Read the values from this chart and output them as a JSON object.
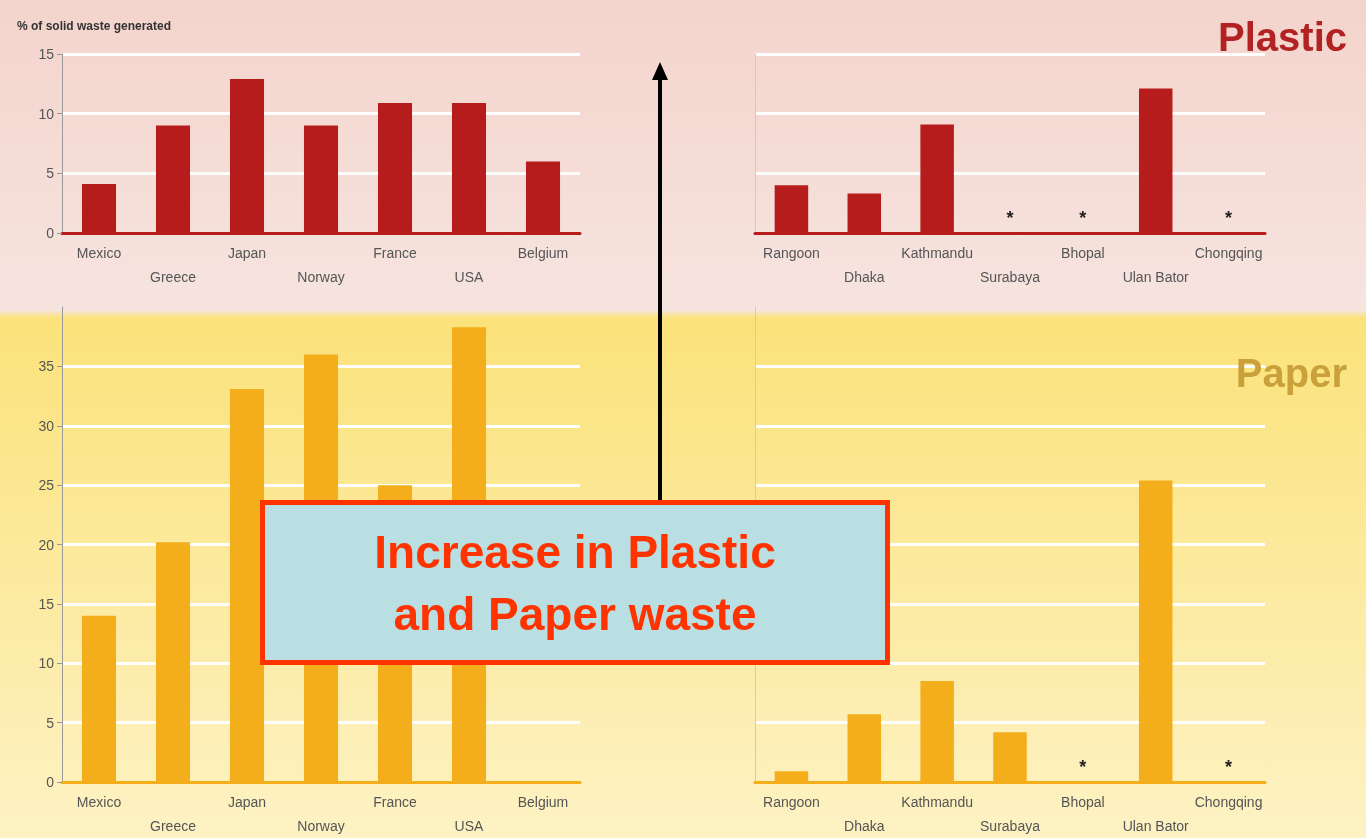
{
  "chart_data": [
    {
      "type": "bar",
      "ylabel": "% of solid waste generated",
      "categories": [
        "Mexico",
        "Greece",
        "Japan",
        "Norway",
        "France",
        "USA",
        "Belgium"
      ],
      "values": [
        4.1,
        9.0,
        12.9,
        9.0,
        10.9,
        10.9,
        6.0
      ],
      "color": "#b71c1c",
      "ylim": [
        0,
        15
      ],
      "yticks": [
        0,
        5,
        10,
        15
      ],
      "grid": "y"
    },
    {
      "type": "bar",
      "title": "Plastic",
      "categories": [
        "Rangoon",
        "Dhaka",
        "Kathmandu",
        "Surabaya",
        "Bhopal",
        "Ulan Bator",
        "Chongqing"
      ],
      "values": [
        4.0,
        3.3,
        9.1,
        null,
        null,
        12.1,
        null
      ],
      "value_labels": [
        null,
        null,
        null,
        "*",
        "*",
        null,
        "*"
      ],
      "color": "#b71c1c",
      "ylim": [
        0,
        15
      ],
      "yticks": [
        0,
        5,
        10,
        15
      ],
      "grid": "y",
      "tick_labels": "x"
    },
    {
      "type": "bar",
      "categories": [
        "Mexico",
        "Greece",
        "Japan",
        "Norway",
        "France",
        "USA",
        "Belgium"
      ],
      "values": [
        14.0,
        20.2,
        33.1,
        36.0,
        25.0,
        38.3,
        null
      ],
      "color": "#f5ae1b",
      "ylim": [
        0,
        40
      ],
      "yticks": [
        0,
        5,
        10,
        15,
        20,
        25,
        30,
        35
      ],
      "grid": "y",
      "annotations": [
        "Increase in Plastic and Paper waste"
      ]
    },
    {
      "type": "bar",
      "title": "Paper",
      "categories": [
        "Rangoon",
        "Dhaka",
        "Kathmandu",
        "Surabaya",
        "Bhopal",
        "Ulan Bator",
        "Chongqing"
      ],
      "values": [
        0.9,
        5.7,
        8.5,
        4.2,
        null,
        25.4,
        null
      ],
      "value_labels": [
        null,
        null,
        null,
        null,
        "*",
        null,
        "*"
      ],
      "color": "#f5ae1b",
      "ylim": [
        0,
        40
      ],
      "yticks": [
        0,
        5,
        10,
        15,
        20,
        25,
        30,
        35
      ],
      "grid": "y",
      "tick_labels": "x"
    }
  ]
}
